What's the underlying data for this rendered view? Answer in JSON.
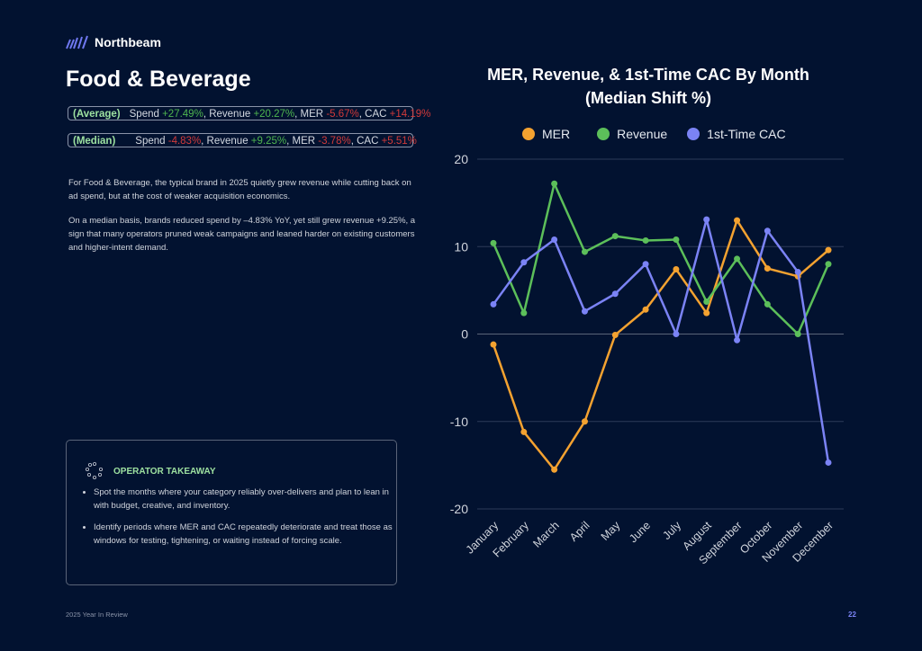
{
  "brand": {
    "name": "Northbeam",
    "icon": "northbeam-stripes-logo"
  },
  "page_title": "Food & Beverage",
  "summary": {
    "average": {
      "tag": "(Average)",
      "spend_label": "Spend ",
      "spend": "+27.49%",
      "revenue_label": ", Revenue ",
      "revenue": "+20.27%",
      "mer_label": ", MER ",
      "mer": "-5.67%",
      "cac_label": ", CAC ",
      "cac": "+14.19%"
    },
    "median": {
      "tag": "(Median)",
      "spend_label": "Spend ",
      "spend": "-4.83%",
      "revenue_label": ", Revenue ",
      "revenue": "+9.25%",
      "mer_label": ", MER ",
      "mer": "-3.78%",
      "cac_label": ", CAC ",
      "cac": "+5.51%"
    }
  },
  "paragraphs": [
    "For Food & Beverage, the typical brand in 2025 quietly grew revenue while cutting back on ad spend, but at the cost of weaker acquisition economics.",
    "On a median basis, brands reduced spend by –4.83% YoY, yet still grew revenue +9.25%, a sign that many operators pruned weak campaigns and leaned harder on existing customers and higher-intent demand."
  ],
  "takeaway": {
    "icon": "dotted-circle-icon",
    "heading": "OPERATOR TAKEAWAY",
    "bullets": [
      "Spot the months where your category reliably over-delivers and plan to lean in with budget, creative, and inventory.",
      "Identify periods where MER and CAC repeatedly deteriorate and treat those as windows for testing, tightening, or waiting instead of forcing scale."
    ]
  },
  "footer": {
    "left": "2025 Year In Review",
    "page": "22"
  },
  "colors": {
    "background": "#021230",
    "mer": "#f4a230",
    "revenue": "#5cbf5a",
    "cac": "#7b83f5",
    "positive": "#4fb44f",
    "negative": "#d23a3a"
  },
  "chart_data": {
    "type": "line",
    "title": "MER, Revenue, & 1st-Time CAC By Month",
    "subtitle": "(Median Shift %)",
    "categories": [
      "January",
      "February",
      "March",
      "April",
      "May",
      "June",
      "July",
      "August",
      "September",
      "October",
      "November",
      "December"
    ],
    "ylim": [
      -20,
      20
    ],
    "yticks": [
      20,
      10,
      0,
      -10,
      -20
    ],
    "grid": true,
    "legend_position": "top",
    "series": [
      {
        "name": "MER",
        "color": "#f4a230",
        "values": [
          -1.2,
          -11.2,
          -15.5,
          -10.0,
          -0.1,
          2.8,
          7.4,
          2.4,
          13.0,
          7.5,
          6.6,
          9.6
        ]
      },
      {
        "name": "Revenue",
        "color": "#5cbf5a",
        "values": [
          10.4,
          2.4,
          17.2,
          9.4,
          11.2,
          10.7,
          10.8,
          3.7,
          8.6,
          3.4,
          0.0,
          8.0
        ]
      },
      {
        "name": "1st-Time CAC",
        "color": "#7b83f5",
        "values": [
          3.4,
          8.2,
          10.8,
          2.6,
          4.6,
          8.0,
          0.0,
          13.1,
          -0.7,
          11.8,
          7.1,
          -14.7
        ]
      }
    ]
  }
}
